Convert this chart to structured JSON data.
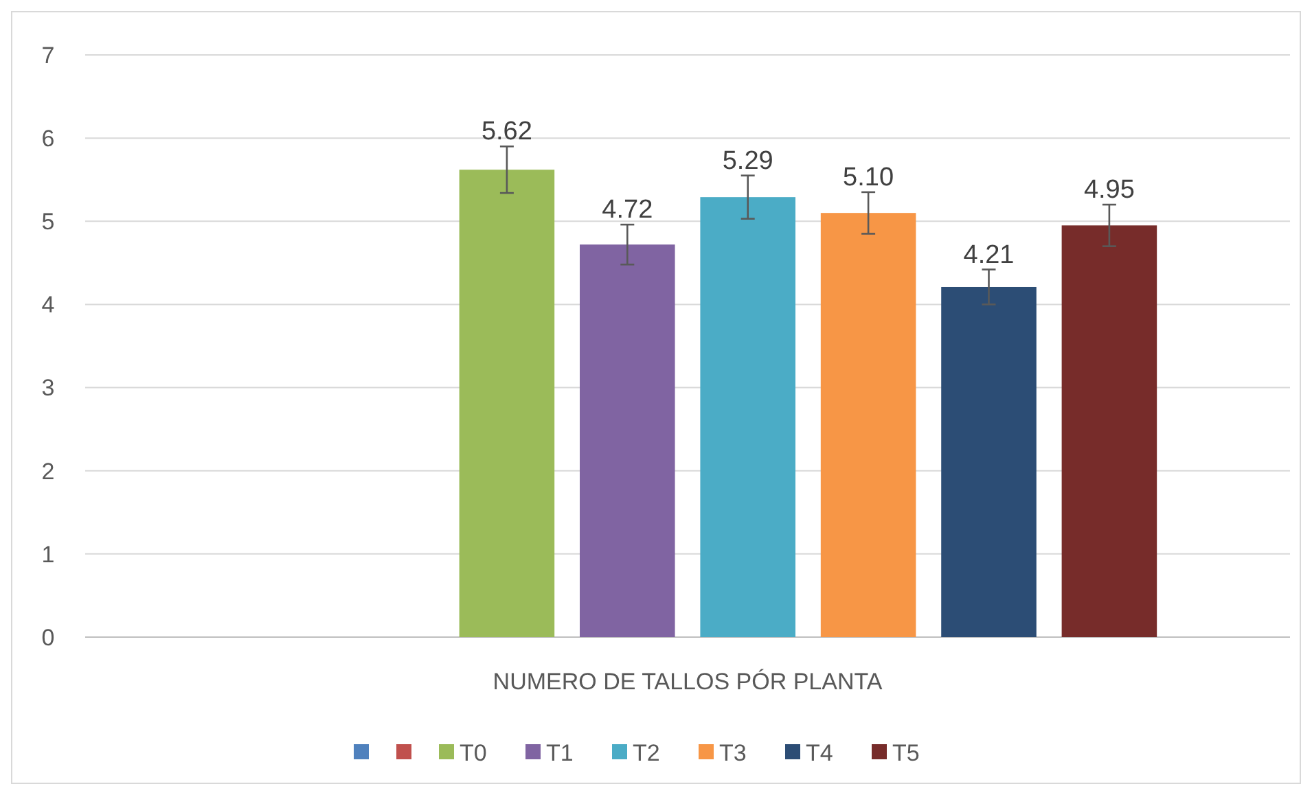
{
  "chart_data": {
    "type": "bar",
    "categories": [
      "NUMERO DE TALLOS PÓR PLANTA"
    ],
    "ylim": [
      0,
      7
    ],
    "yticks": [
      0,
      1,
      2,
      3,
      4,
      5,
      6,
      7
    ],
    "grid": "y",
    "legend": "bottom",
    "series": [
      {
        "color": "#4f81bd",
        "values": [
          null
        ]
      },
      {
        "color": "#c0504d",
        "values": [
          null
        ]
      },
      {
        "name": "T0",
        "color": "#9bbb59",
        "values": [
          5.62
        ],
        "errors": [
          0.28
        ],
        "value_labels": [
          "5.62"
        ]
      },
      {
        "name": "T1",
        "color": "#8064a2",
        "values": [
          4.72
        ],
        "errors": [
          0.24
        ],
        "value_labels": [
          "4.72"
        ]
      },
      {
        "name": "T2",
        "color": "#4bacc6",
        "values": [
          5.29
        ],
        "errors": [
          0.26
        ],
        "value_labels": [
          "5.29"
        ]
      },
      {
        "name": "T3",
        "color": "#f79646",
        "values": [
          5.1
        ],
        "errors": [
          0.25
        ],
        "value_labels": [
          "5.10"
        ]
      },
      {
        "name": "T4",
        "color": "#2c4d75",
        "values": [
          4.21
        ],
        "errors": [
          0.21
        ],
        "value_labels": [
          "4.21"
        ]
      },
      {
        "name": "T5",
        "color": "#772c2a",
        "values": [
          4.95
        ],
        "errors": [
          0.25
        ],
        "value_labels": [
          "4.95"
        ]
      }
    ]
  }
}
